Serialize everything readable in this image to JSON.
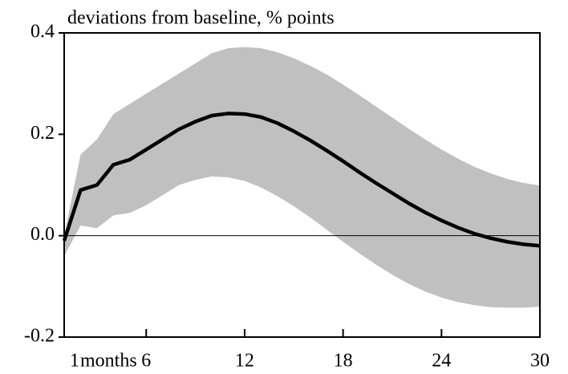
{
  "chart_data": {
    "type": "band_line",
    "title": "deviations from baseline, % points",
    "x_label": "months",
    "x": [
      1,
      2,
      3,
      4,
      5,
      6,
      7,
      8,
      9,
      10,
      11,
      12,
      13,
      14,
      15,
      16,
      17,
      18,
      19,
      20,
      21,
      22,
      23,
      24,
      25,
      26,
      27,
      28,
      29,
      30
    ],
    "series": [
      {
        "name": "upper",
        "color": "#c0c0c0",
        "values": [
          0.0,
          0.16,
          0.19,
          0.24,
          0.26,
          0.28,
          0.3,
          0.32,
          0.34,
          0.36,
          0.37,
          0.372,
          0.37,
          0.362,
          0.35,
          0.335,
          0.318,
          0.298,
          0.277,
          0.255,
          0.233,
          0.211,
          0.19,
          0.17,
          0.152,
          0.136,
          0.123,
          0.112,
          0.104,
          0.099
        ]
      },
      {
        "name": "lower",
        "color": "#c0c0c0",
        "values": [
          -0.04,
          0.02,
          0.015,
          0.04,
          0.045,
          0.06,
          0.08,
          0.1,
          0.11,
          0.117,
          0.115,
          0.108,
          0.095,
          0.078,
          0.058,
          0.036,
          0.012,
          -0.012,
          -0.035,
          -0.057,
          -0.077,
          -0.095,
          -0.11,
          -0.122,
          -0.131,
          -0.137,
          -0.141,
          -0.142,
          -0.142,
          -0.14
        ]
      },
      {
        "name": "response",
        "color": "#000000",
        "values": [
          -0.01,
          0.09,
          0.1,
          0.14,
          0.15,
          0.17,
          0.19,
          0.21,
          0.225,
          0.237,
          0.241,
          0.24,
          0.234,
          0.222,
          0.206,
          0.188,
          0.168,
          0.147,
          0.125,
          0.104,
          0.084,
          0.064,
          0.046,
          0.03,
          0.016,
          0.004,
          -0.005,
          -0.012,
          -0.017,
          -0.02
        ]
      }
    ],
    "xlim": [
      1,
      30
    ],
    "xticks": [
      1,
      6,
      12,
      18,
      24,
      30
    ],
    "ylim": [
      -0.2,
      0.4
    ],
    "yticks": [
      0.4,
      0.2,
      {
        "value": 0,
        "label": "0.0"
      },
      -0.2
    ],
    "zero_line": true,
    "grid": false
  }
}
